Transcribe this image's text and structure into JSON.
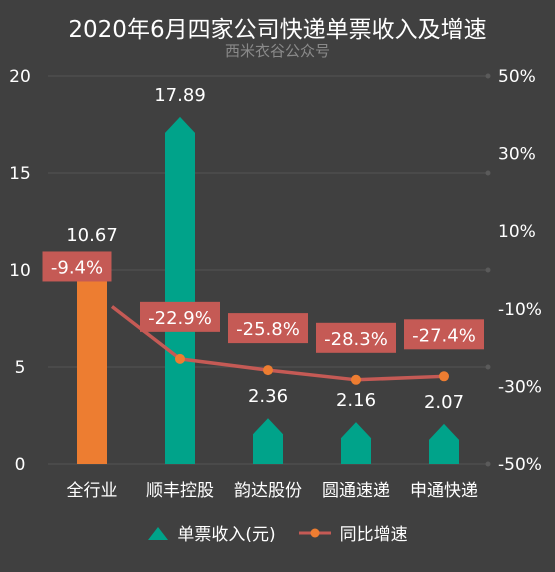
{
  "title": "2020年6月四家公司快递单票收入及增速",
  "subtitle": "西米衣谷公众号",
  "chart_data": {
    "type": "bar",
    "categories": [
      "全行业",
      "顺丰控股",
      "韵达股份",
      "圆通速递",
      "申通快递"
    ],
    "series": [
      {
        "name": "单票收入(元)",
        "values": [
          10.67,
          17.89,
          2.36,
          2.16,
          2.07
        ],
        "value_labels": [
          "10.67",
          "17.89",
          "2.36",
          "2.16",
          "2.07"
        ],
        "highlight_color": "#ED7D31",
        "color": "#00A38A",
        "axis": "left"
      },
      {
        "name": "同比增速",
        "type": "line",
        "values": [
          -9.4,
          -22.9,
          -25.8,
          -28.3,
          -27.4
        ],
        "value_labels": [
          "-9.4%",
          "-22.9%",
          "-25.8%",
          "-28.3%",
          "-27.4%"
        ],
        "color": "#C55A55",
        "marker_color": "#ED7D31",
        "axis": "right"
      }
    ],
    "left_axis": {
      "ylim": [
        0,
        20
      ],
      "ticks": [
        0,
        5,
        10,
        15,
        20
      ],
      "tick_labels": [
        "0",
        "5",
        "10",
        "15",
        "20"
      ]
    },
    "right_axis": {
      "ylim": [
        -50,
        50
      ],
      "ticks": [
        -50,
        -30,
        -10,
        10,
        30,
        50
      ],
      "tick_labels": [
        "-50%",
        "-30%",
        "-10%",
        "10%",
        "30%",
        "50%"
      ]
    },
    "grid": true,
    "legend": "bottom-center"
  }
}
